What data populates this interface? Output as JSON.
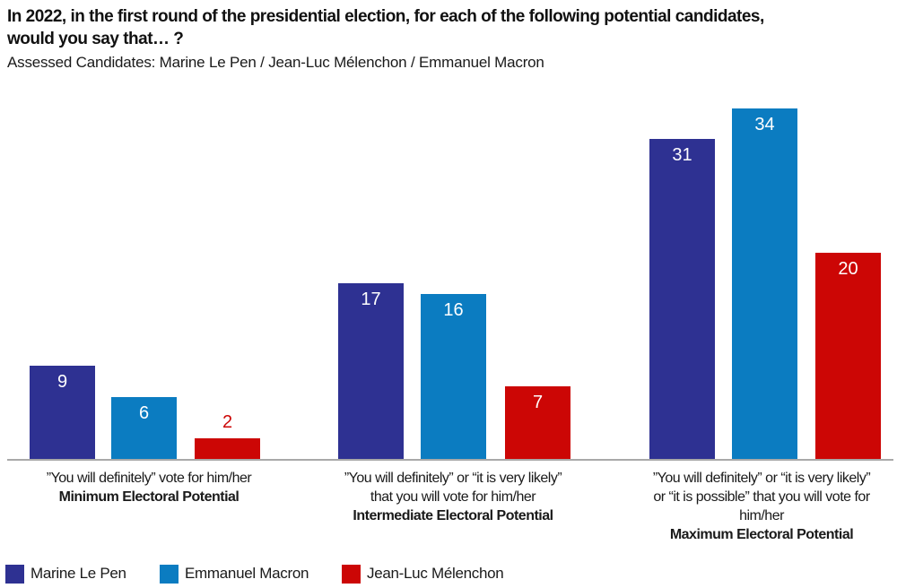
{
  "header": {
    "title_line1": "In 2022, in the first round of the presidential election, for each of the following potential candidates,",
    "title_line2": "would you say that… ?",
    "subtitle": "Assessed Candidates: Marine Le Pen / Jean-Luc Mélenchon / Emmanuel Macron"
  },
  "chart_data": {
    "type": "bar",
    "title": "In 2022, in the first round of the presidential election, for each of the following potential candidates, would you say that… ?",
    "subtitle": "Assessed Candidates: Marine Le Pen / Jean-Luc Mélenchon / Emmanuel Macron",
    "unit": "percent",
    "ylim": [
      0,
      36
    ],
    "grid": false,
    "legend_position": "bottom",
    "value_labels": "on bars (white inside; colored above bar when bar is too short)",
    "categories": [
      "Minimum Electoral Potential",
      "Intermediate Electoral Potential",
      "Maximum Electoral Potential"
    ],
    "groups": [
      {
        "caption_lines": [
          "”You will definitely” vote for him/her"
        ],
        "bold_caption": "Minimum Electoral Potential"
      },
      {
        "caption_lines": [
          "”You will definitely” or “it is very likely”",
          "that you will vote for him/her"
        ],
        "bold_caption": "Intermediate Electoral Potential"
      },
      {
        "caption_lines": [
          "”You will definitely” or “it is very likely”",
          "or “it is possible” that you will vote for",
          "him/her"
        ],
        "bold_caption": "Maximum Electoral Potential"
      }
    ],
    "series": [
      {
        "name": "Marine Le Pen",
        "color": "#2e3192",
        "values": [
          9,
          17,
          31
        ]
      },
      {
        "name": "Emmanuel Macron",
        "color": "#0b7cc1",
        "values": [
          6,
          16,
          34
        ]
      },
      {
        "name": "Jean-Luc Mélenchon",
        "color": "#cc0605",
        "values": [
          2,
          7,
          20
        ]
      }
    ]
  },
  "legend": {
    "items": [
      {
        "label": "Marine Le Pen",
        "color": "#2e3192"
      },
      {
        "label": "Emmanuel Macron",
        "color": "#0b7cc1"
      },
      {
        "label": "Jean-Luc Mélenchon",
        "color": "#cc0605"
      }
    ]
  },
  "colors": {
    "axis_line": "#a9a9a9",
    "text": "#1a1a1a",
    "background": "#ffffff"
  }
}
